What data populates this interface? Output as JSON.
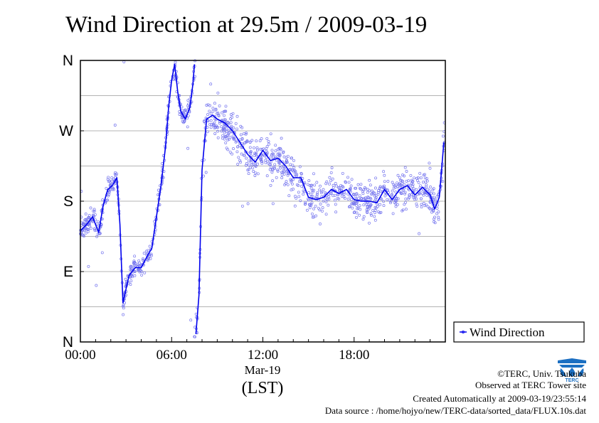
{
  "chart_data": {
    "type": "scatter",
    "title": "Wind Direction at 29.5m / 2009-03-19",
    "xlabel_date": "Mar-19",
    "xlabel_unit": "(LST)",
    "x_ticks": [
      {
        "hour": 0,
        "label": "00:00"
      },
      {
        "hour": 6,
        "label": "06:00"
      },
      {
        "hour": 12,
        "label": "12:00"
      },
      {
        "hour": 18,
        "label": "18:00"
      }
    ],
    "xlim": [
      0,
      24
    ],
    "y_ticks": [
      {
        "deg": 0,
        "label": "N"
      },
      {
        "deg": 90,
        "label": "E"
      },
      {
        "deg": 180,
        "label": "S"
      },
      {
        "deg": 270,
        "label": "W"
      },
      {
        "deg": 360,
        "label": "N"
      }
    ],
    "ylim": [
      0,
      360
    ],
    "grid": true,
    "legend": {
      "position": "right",
      "entries": [
        "Wind Direction"
      ]
    },
    "series": [
      {
        "name": "Wind Direction",
        "color": "#0000ee",
        "scatter_color": "#7777ee",
        "x": [
          0.0,
          0.4,
          0.8,
          1.2,
          1.5,
          1.8,
          2.1,
          2.4,
          2.6,
          2.8,
          3.2,
          3.6,
          4.0,
          4.4,
          4.7,
          5.0,
          5.3,
          5.6,
          5.8,
          6.0,
          6.2,
          6.4,
          6.6,
          6.9,
          7.2,
          7.4,
          7.5,
          7.6,
          7.8,
          8.0,
          8.3,
          8.7,
          9.0,
          9.5,
          10.0,
          10.5,
          11.0,
          11.5,
          12.0,
          12.5,
          13.0,
          13.5,
          14.0,
          14.5,
          15.0,
          15.5,
          16.0,
          16.5,
          17.0,
          17.5,
          18.0,
          18.5,
          19.0,
          19.5,
          20.0,
          20.5,
          21.0,
          21.5,
          22.0,
          22.5,
          23.0,
          23.3,
          23.6,
          23.9
        ],
        "y": [
          142,
          150,
          160,
          140,
          175,
          195,
          200,
          210,
          150,
          50,
          85,
          95,
          95,
          110,
          120,
          160,
          200,
          250,
          300,
          335,
          355,
          320,
          295,
          285,
          300,
          330,
          355,
          10,
          60,
          220,
          285,
          290,
          285,
          280,
          270,
          255,
          240,
          230,
          245,
          232,
          235,
          225,
          210,
          210,
          185,
          182,
          185,
          195,
          190,
          195,
          182,
          180,
          180,
          178,
          195,
          182,
          195,
          200,
          188,
          198,
          188,
          170,
          185,
          255
        ]
      }
    ]
  },
  "credits": {
    "copyright": "©TERC, Univ. Tsukuba",
    "site": "Observed at TERC Tower site",
    "created": "Created Automatically at 2009-03-19/23:55:14",
    "source": "Data source : /home/hojyo/new/TERC-data/sorted_data/FLUX.10s.dat"
  },
  "logo": {
    "text": "TERC",
    "color": "#1b6fc2"
  }
}
